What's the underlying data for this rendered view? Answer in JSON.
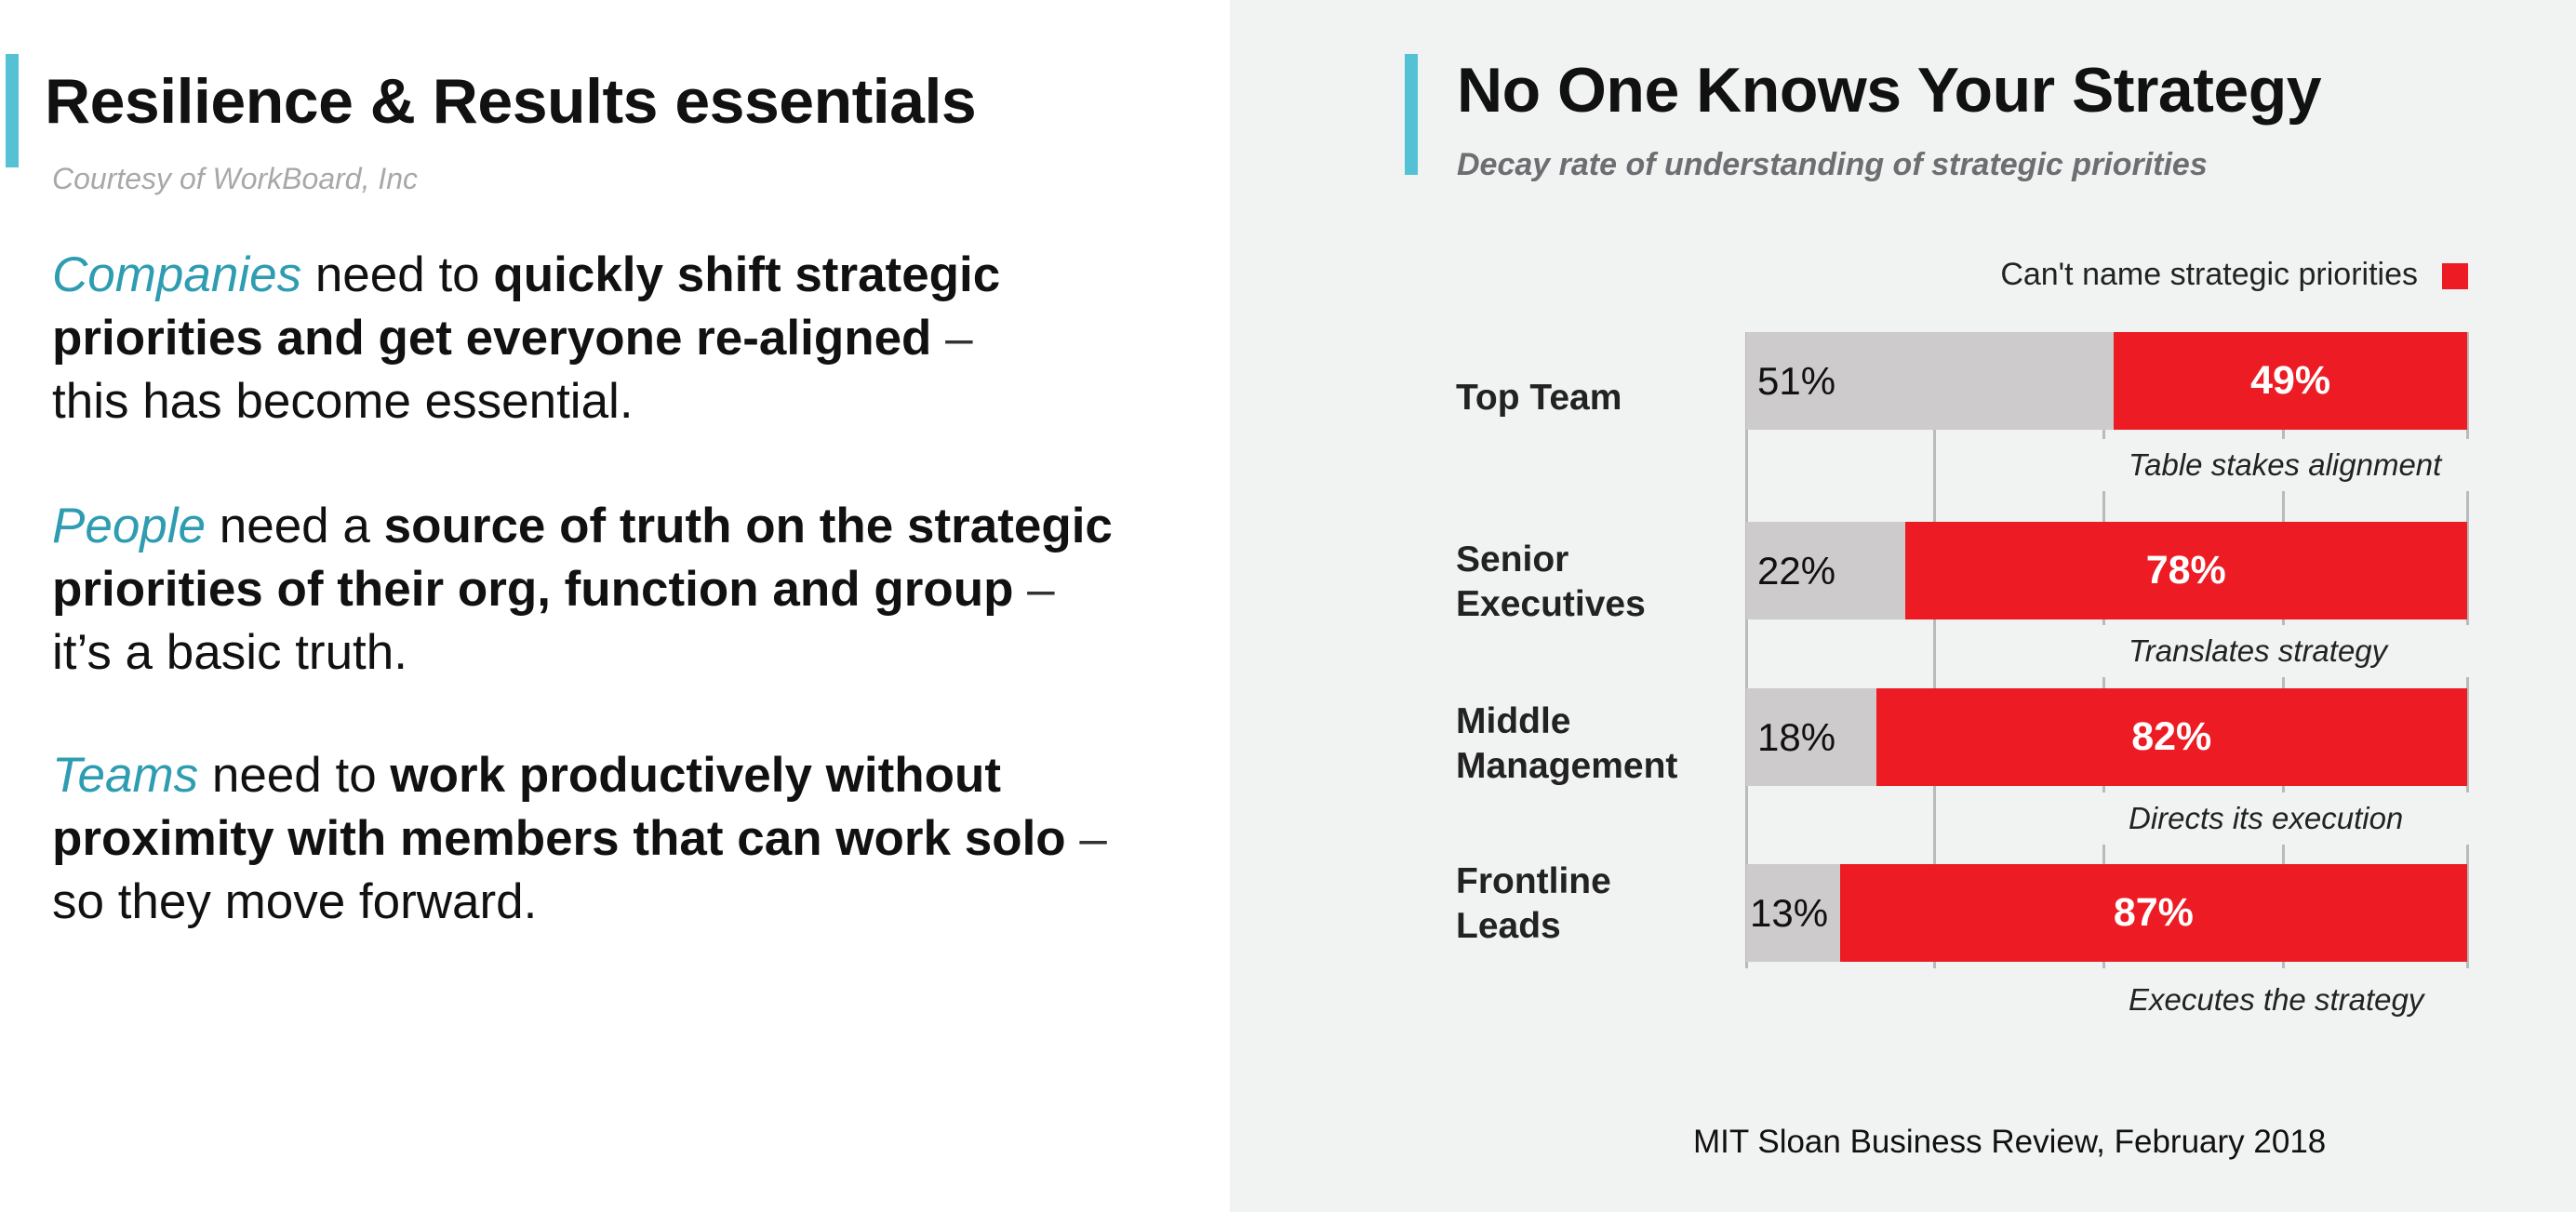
{
  "left": {
    "title": "Resilience & Results essentials",
    "credit": "Courtesy of WorkBoard, Inc",
    "paragraphs": [
      {
        "lead": "Companies",
        "mid": " need to ",
        "strong": "quickly shift strategic priorities and get everyone re-aligned",
        "dash": " –",
        "tail": "this has become essential."
      },
      {
        "lead": "People",
        "mid": " need a ",
        "strong": "source of truth on the strategic priorities of their org, function and group",
        "dash": " –",
        "tail": "it’s a basic truth."
      },
      {
        "lead": "Teams",
        "mid": " need to ",
        "strong": "work productively without proximity with members that can work solo",
        "dash": " –",
        "tail": "so they move forward."
      }
    ]
  },
  "chart_data": {
    "type": "bar",
    "orientation": "horizontal",
    "stacked": true,
    "title": "No One Knows Your Strategy",
    "subtitle": "Decay rate of understanding of strategic priorities",
    "categories": [
      "Top Team",
      "Senior Executives",
      "Middle Management",
      "Frontline Leads"
    ],
    "series": [
      {
        "values": [
          51,
          22,
          18,
          13
        ],
        "labels": [
          "51%",
          "22%",
          "18%",
          "13%"
        ],
        "color": "#cdcbcb"
      },
      {
        "name": "Can't name strategic priorities",
        "values": [
          49,
          78,
          82,
          87
        ],
        "labels": [
          "49%",
          "78%",
          "82%",
          "87%"
        ],
        "color": "#ed1c24"
      }
    ],
    "annotations": [
      "Table stakes alignment",
      "Translates strategy",
      "Directs its execution",
      "Executes the strategy"
    ],
    "legend": {
      "position": "top-right",
      "label": "Can't name strategic priorities"
    },
    "xlim": [
      0,
      100
    ],
    "source": "MIT Sloan Business Review, February 2018"
  },
  "colors": {
    "accent": "#55c1d4",
    "lead_text": "#2e9cb1",
    "red": "#ed1c24",
    "gray_bar": "#cdcbcb",
    "panel_bg": "#f1f2f2"
  }
}
